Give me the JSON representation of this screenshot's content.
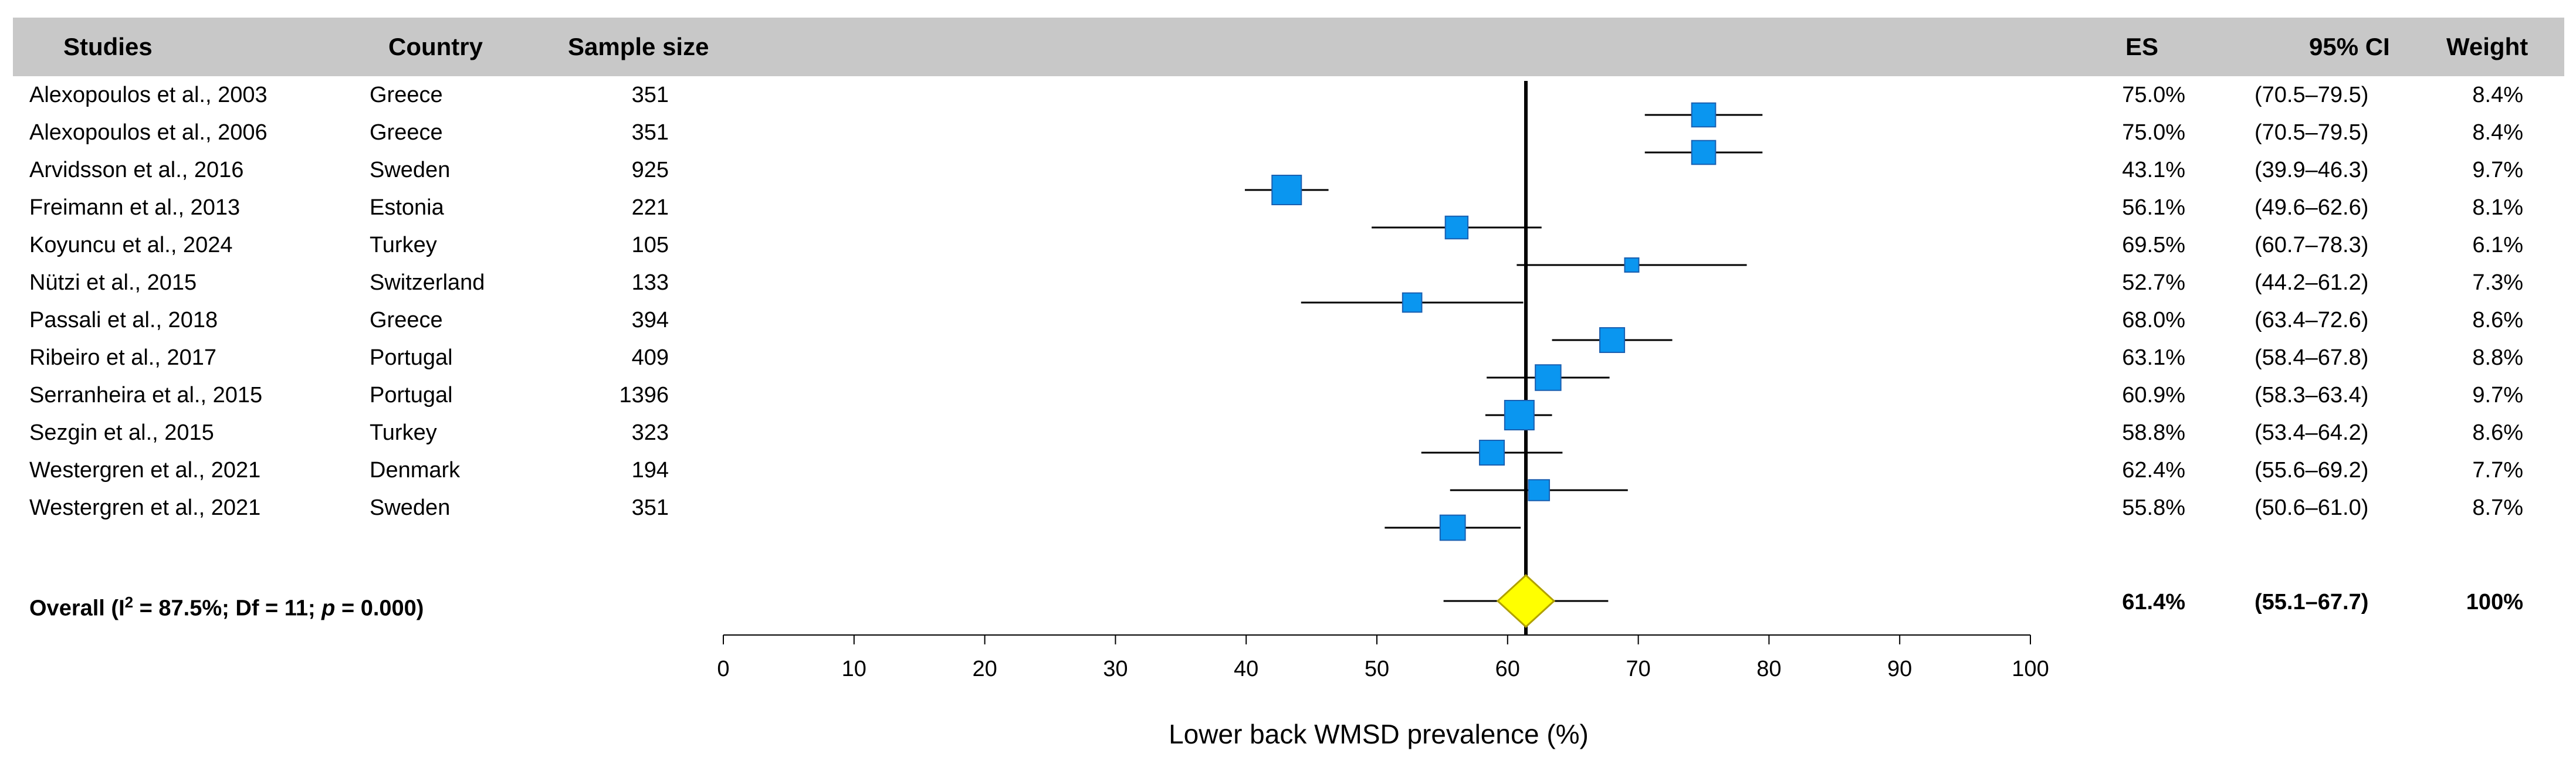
{
  "header": {
    "studies": "Studies",
    "country": "Country",
    "sample_size": "Sample size",
    "es": "ES",
    "ci": "95% CI",
    "weight": "Weight"
  },
  "colors": {
    "header_bg": "#c8c8c8",
    "marker": "#0a96f0",
    "marker_border": "#1a5fb0",
    "diamond_fill": "#ffff00",
    "diamond_border": "#b0a000",
    "line": "#000000"
  },
  "chart_data": {
    "type": "forest",
    "xlabel": "Lower back WMSD prevalence (%)",
    "xlim": [
      0,
      100
    ],
    "ticks": [
      0,
      10,
      20,
      30,
      40,
      50,
      60,
      70,
      80,
      90,
      100
    ],
    "tick_labels": [
      "0",
      "10",
      "20",
      "30",
      "40",
      "50",
      "60",
      "70",
      "80",
      "90",
      "100"
    ],
    "reference_line": 61.4,
    "studies": [
      {
        "study": "Alexopoulos et al., 2003",
        "country": "Greece",
        "n": "351",
        "es": 75.0,
        "lo": 70.5,
        "hi": 79.5,
        "es_text": "75.0%",
        "ci_text": "(70.5–79.5)",
        "weight": "8.4%",
        "w": 8.4
      },
      {
        "study": "Alexopoulos et al., 2006",
        "country": "Greece",
        "n": "351",
        "es": 75.0,
        "lo": 70.5,
        "hi": 79.5,
        "es_text": "75.0%",
        "ci_text": "(70.5–79.5)",
        "weight": "8.4%",
        "w": 8.4
      },
      {
        "study": "Arvidsson et al., 2016",
        "country": "Sweden",
        "n": "925",
        "es": 43.1,
        "lo": 39.9,
        "hi": 46.3,
        "es_text": "43.1%",
        "ci_text": "(39.9–46.3)",
        "weight": "9.7%",
        "w": 9.7
      },
      {
        "study": "Freimann et al., 2013",
        "country": "Estonia",
        "n": "221",
        "es": 56.1,
        "lo": 49.6,
        "hi": 62.6,
        "es_text": "56.1%",
        "ci_text": "(49.6–62.6)",
        "weight": "8.1%",
        "w": 8.1
      },
      {
        "study": "Koyuncu et al., 2024",
        "country": "Turkey",
        "n": "105",
        "es": 69.5,
        "lo": 60.7,
        "hi": 78.3,
        "es_text": "69.5%",
        "ci_text": "(60.7–78.3)",
        "weight": "6.1%",
        "w": 6.1
      },
      {
        "study": "Nützi et al., 2015",
        "country": "Switzerland",
        "n": "133",
        "es": 52.7,
        "lo": 44.2,
        "hi": 61.2,
        "es_text": "52.7%",
        "ci_text": "(44.2–61.2)",
        "weight": "7.3%",
        "w": 7.3
      },
      {
        "study": "Passali et al., 2018",
        "country": "Greece",
        "n": "394",
        "es": 68.0,
        "lo": 63.4,
        "hi": 72.6,
        "es_text": "68.0%",
        "ci_text": "(63.4–72.6)",
        "weight": "8.6%",
        "w": 8.6
      },
      {
        "study": "Ribeiro et al., 2017",
        "country": "Portugal",
        "n": "409",
        "es": 63.1,
        "lo": 58.4,
        "hi": 67.8,
        "es_text": "63.1%",
        "ci_text": "(58.4–67.8)",
        "weight": "8.8%",
        "w": 8.8
      },
      {
        "study": "Serranheira et al., 2015",
        "country": "Portugal",
        "n": "1396",
        "es": 60.9,
        "lo": 58.3,
        "hi": 63.4,
        "es_text": "60.9%",
        "ci_text": "(58.3–63.4)",
        "weight": "9.7%",
        "w": 9.7
      },
      {
        "study": "Sezgin et al., 2015",
        "country": "Turkey",
        "n": "323",
        "es": 58.8,
        "lo": 53.4,
        "hi": 64.2,
        "es_text": "58.8%",
        "ci_text": "(53.4–64.2)",
        "weight": "8.6%",
        "w": 8.6
      },
      {
        "study": "Westergren et al., 2021",
        "country": "Denmark",
        "n": "194",
        "es": 62.4,
        "lo": 55.6,
        "hi": 69.2,
        "es_text": "62.4%",
        "ci_text": "(55.6–69.2)",
        "weight": "7.7%",
        "w": 7.7
      },
      {
        "study": "Westergren et al., 2021",
        "country": "Sweden",
        "n": "351",
        "es": 55.8,
        "lo": 50.6,
        "hi": 61.0,
        "es_text": "55.8%",
        "ci_text": "(50.6–61.0)",
        "weight": "8.7%",
        "w": 8.7
      }
    ],
    "overall": {
      "label_prefix": "Overall (I",
      "label_sup": "2",
      "label_mid": " = 87.5%;  Df = 11;  ",
      "label_p": "p",
      "label_end": " = 0.000)",
      "es": 61.4,
      "lo": 55.1,
      "hi": 67.7,
      "pi_lo": 55.1,
      "pi_hi": 67.7,
      "es_text": "61.4%",
      "ci_text": "(55.1–67.7)",
      "weight": "100%"
    }
  }
}
